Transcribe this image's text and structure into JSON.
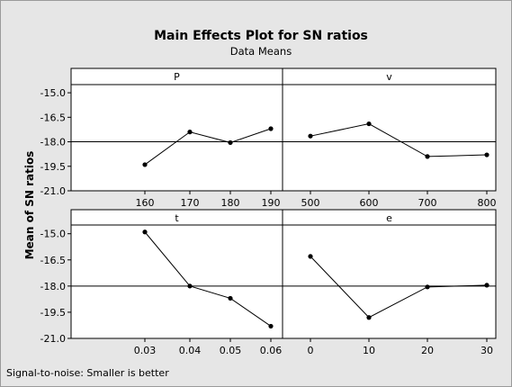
{
  "chart_data": {
    "type": "line",
    "title": "Main Effects Plot for SN ratios",
    "subtitle": "Data Means",
    "ylabel": "Mean of SN ratios",
    "footer": "Signal-to-noise: Smaller is better",
    "ylim": [
      -21.0,
      -14.5
    ],
    "yticks": [
      "-15.0",
      "-16.5",
      "-18.0",
      "-19.5",
      "-21.0"
    ],
    "reference_line": -18.0,
    "grid": false,
    "colors": {
      "background": "#e6e6e6",
      "panel": "#ffffff",
      "line": "#000000"
    },
    "panels": [
      {
        "name": "P",
        "categories": [
          "160",
          "170",
          "180",
          "190"
        ],
        "values": [
          -19.4,
          -17.4,
          -18.05,
          -17.2
        ]
      },
      {
        "name": "v",
        "categories": [
          "500",
          "600",
          "700",
          "800"
        ],
        "values": [
          -17.65,
          -16.9,
          -18.9,
          -18.8
        ]
      },
      {
        "name": "t",
        "categories": [
          "0.03",
          "0.04",
          "0.05",
          "0.06"
        ],
        "values": [
          -14.9,
          -18.0,
          -18.7,
          -20.3
        ]
      },
      {
        "name": "e",
        "categories": [
          "0",
          "10",
          "20",
          "30"
        ],
        "values": [
          -16.3,
          -19.8,
          -18.05,
          -17.95
        ]
      }
    ]
  }
}
